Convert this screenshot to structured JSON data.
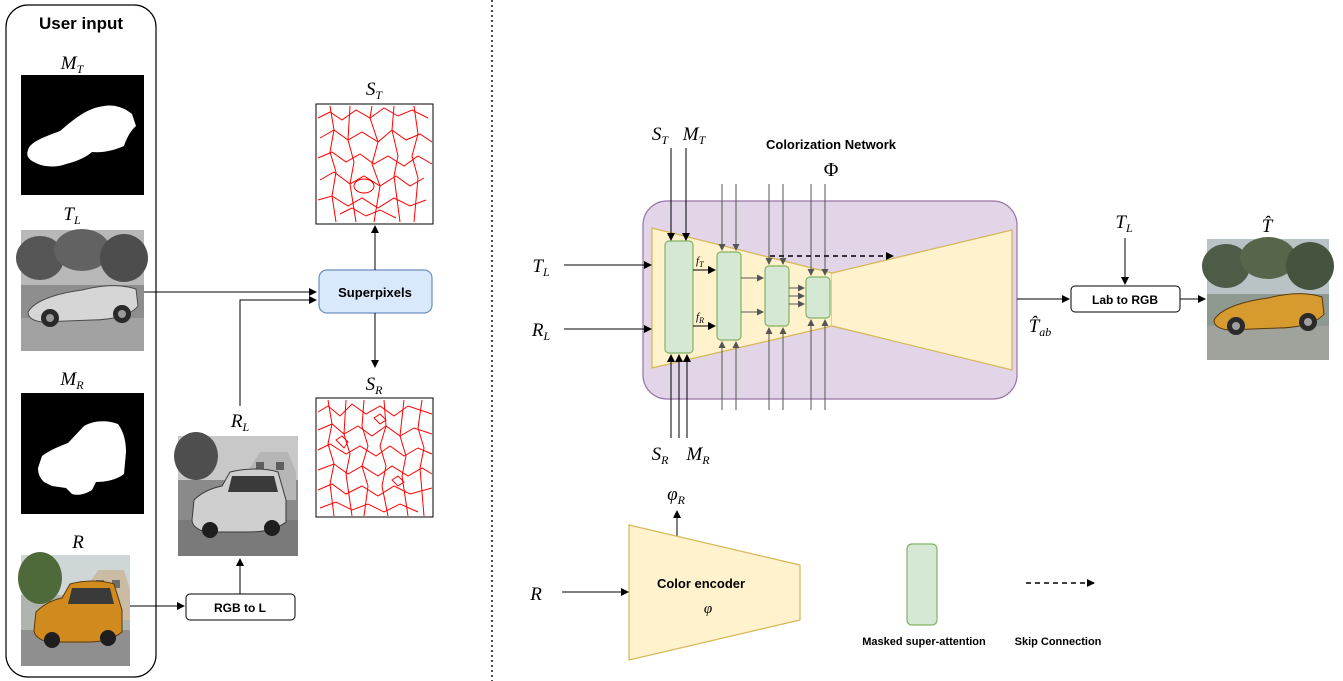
{
  "user_input_title": "User input",
  "labels": {
    "m_t": "M",
    "m_t_sub": "T",
    "t_l": "T",
    "t_l_sub": "L",
    "m_r": "M",
    "m_r_sub": "R",
    "r": "R",
    "r_l": "R",
    "r_l_sub": "L",
    "s_t": "S",
    "s_t_sub": "T",
    "s_r": "S",
    "s_r_sub": "R",
    "net_s_t": "S",
    "net_s_t_sub": "T",
    "net_m_t": "M",
    "net_m_t_sub": "T",
    "net_t_l": "T",
    "net_t_l_sub": "L",
    "net_r_l": "R",
    "net_r_l_sub": "L",
    "net_s_r": "S",
    "net_s_r_sub": "R",
    "net_m_r": "M",
    "net_m_r_sub": "R",
    "f_t": "f",
    "f_t_sub": "T",
    "f_r": "f",
    "f_r_sub": "R",
    "phi_r": "φ",
    "phi_r_sub": "R",
    "enc_r": "R",
    "phi_enc": "φ",
    "t_ab_hat": "T̂",
    "t_ab_sub": "ab",
    "t_l_right": "T",
    "t_l_right_sub": "L",
    "t_hat": "T̂",
    "Phi": "Φ"
  },
  "boxes": {
    "superpixels": "Superpixels",
    "rgb_to_l": "RGB to L",
    "lab_to_rgb": "Lab to RGB",
    "color_encoder": "Color encoder"
  },
  "colorization_network": "Colorization Network",
  "legend": {
    "masked_attention": "Masked super-attention",
    "skip_connection": "Skip Connection"
  },
  "colors": {
    "network_bg": "#e1d5e7",
    "network_border": "#9673a6",
    "trapezoid_fill": "#fff2cc",
    "trapezoid_border": "#d6b656",
    "attention_fill": "#d5e8d4",
    "attention_border": "#82b366",
    "superpixels_fill": "#dae8fc",
    "superpixels_border": "#6c8ebf",
    "superpixel_line": "#ff0000"
  }
}
